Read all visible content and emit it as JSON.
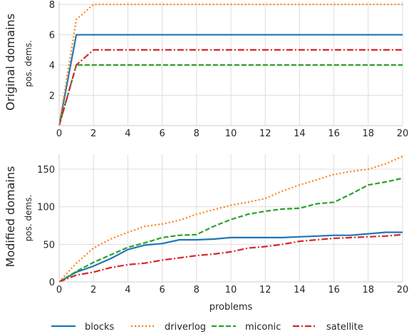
{
  "legend": {
    "placement": "bottom",
    "entries": [
      {
        "name": "blocks",
        "color": "#1f77b4",
        "dash": "solid"
      },
      {
        "name": "driverlog",
        "color": "#ff7f0e",
        "dash": "dotted"
      },
      {
        "name": "miconic",
        "color": "#2ca02c",
        "dash": "dashed"
      },
      {
        "name": "satellite",
        "color": "#d62728",
        "dash": "dashdot"
      }
    ]
  },
  "chart_data": [
    {
      "type": "line",
      "row_label": "Original domains",
      "ylabel": "pos. dems.",
      "xlabel": "",
      "xlim": [
        0,
        20
      ],
      "ylim": [
        0,
        8.2
      ],
      "xticks": [
        0,
        2,
        4,
        6,
        8,
        10,
        12,
        14,
        16,
        18,
        20
      ],
      "yticks": [
        2,
        4,
        6,
        8
      ],
      "grid": true,
      "x": [
        0,
        1,
        2,
        20
      ],
      "series": [
        {
          "name": "blocks",
          "values": [
            0,
            6,
            6,
            6
          ]
        },
        {
          "name": "driverlog",
          "values": [
            0,
            7,
            8,
            8
          ]
        },
        {
          "name": "miconic",
          "values": [
            0,
            4,
            4,
            4
          ]
        },
        {
          "name": "satellite",
          "values": [
            0,
            4,
            5,
            5
          ]
        }
      ]
    },
    {
      "type": "line",
      "row_label": "Modified domains",
      "ylabel": "pos. dems.",
      "xlabel": "problems",
      "xlim": [
        0,
        20
      ],
      "ylim": [
        0,
        170
      ],
      "xticks": [
        0,
        2,
        4,
        6,
        8,
        10,
        12,
        14,
        16,
        18,
        20
      ],
      "yticks": [
        0,
        50,
        100,
        150
      ],
      "grid": true,
      "x": [
        0,
        1,
        2,
        3,
        4,
        5,
        6,
        7,
        8,
        9,
        10,
        11,
        12,
        13,
        14,
        15,
        16,
        17,
        18,
        19,
        20
      ],
      "series": [
        {
          "name": "blocks",
          "values": [
            0,
            13,
            21,
            31,
            43,
            49,
            51,
            56,
            56,
            57,
            59,
            59,
            59,
            59,
            60,
            61,
            62,
            62,
            64,
            66,
            66
          ]
        },
        {
          "name": "driverlog",
          "values": [
            0,
            25,
            45,
            57,
            66,
            74,
            77,
            82,
            90,
            96,
            102,
            106,
            111,
            121,
            129,
            136,
            143,
            147,
            150,
            157,
            167
          ]
        },
        {
          "name": "miconic",
          "values": [
            0,
            14,
            26,
            36,
            46,
            52,
            59,
            62,
            63,
            74,
            83,
            90,
            94,
            97,
            98,
            104,
            106,
            117,
            129,
            133,
            138
          ]
        },
        {
          "name": "satellite",
          "values": [
            0,
            9,
            13,
            19,
            23,
            25,
            29,
            32,
            35,
            37,
            40,
            45,
            47,
            50,
            54,
            56,
            58,
            59,
            60,
            61,
            63
          ]
        }
      ]
    }
  ]
}
